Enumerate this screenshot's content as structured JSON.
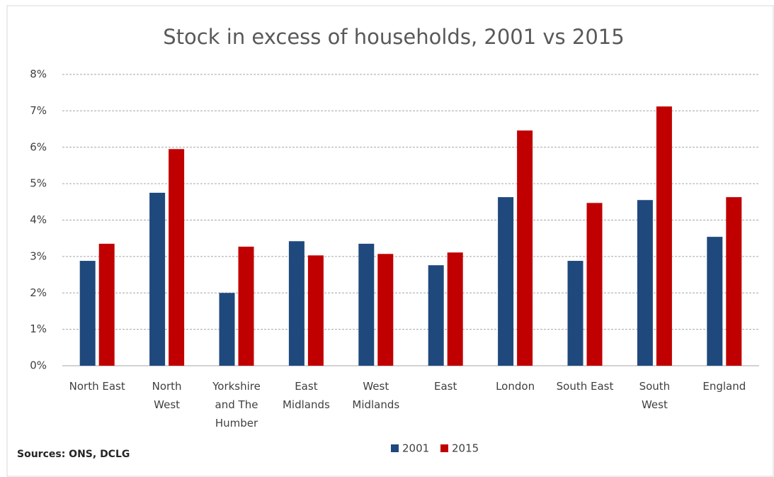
{
  "chart_data": {
    "type": "bar",
    "title": "Stock in excess of households, 2001 vs 2015",
    "categories": [
      "North East",
      "North\nWest",
      "Yorkshire\nand The\nHumber",
      "East\nMidlands",
      "West\nMidlands",
      "East",
      "London",
      "South East",
      "South\nWest",
      "England"
    ],
    "series": [
      {
        "name": "2001",
        "color": "#1f497d",
        "values": [
          2.88,
          4.75,
          2.0,
          3.42,
          3.35,
          2.76,
          4.63,
          2.88,
          4.55,
          3.54
        ]
      },
      {
        "name": "2015",
        "color": "#c00000",
        "values": [
          3.35,
          5.95,
          3.27,
          3.03,
          3.07,
          3.11,
          6.46,
          4.47,
          7.12,
          4.63
        ]
      }
    ],
    "ylim": [
      0,
      8
    ],
    "yticks": [
      {
        "value": 0,
        "label": "0%"
      },
      {
        "value": 1,
        "label": "1%"
      },
      {
        "value": 2,
        "label": "2%"
      },
      {
        "value": 3,
        "label": "3%"
      },
      {
        "value": 4,
        "label": "4%"
      },
      {
        "value": 5,
        "label": "5%"
      },
      {
        "value": 6,
        "label": "6%"
      },
      {
        "value": 7,
        "label": "7%"
      },
      {
        "value": 8,
        "label": "8%"
      }
    ],
    "grid": true,
    "legend": "bottom",
    "annotation": "Sources: ONS, DCLG"
  }
}
